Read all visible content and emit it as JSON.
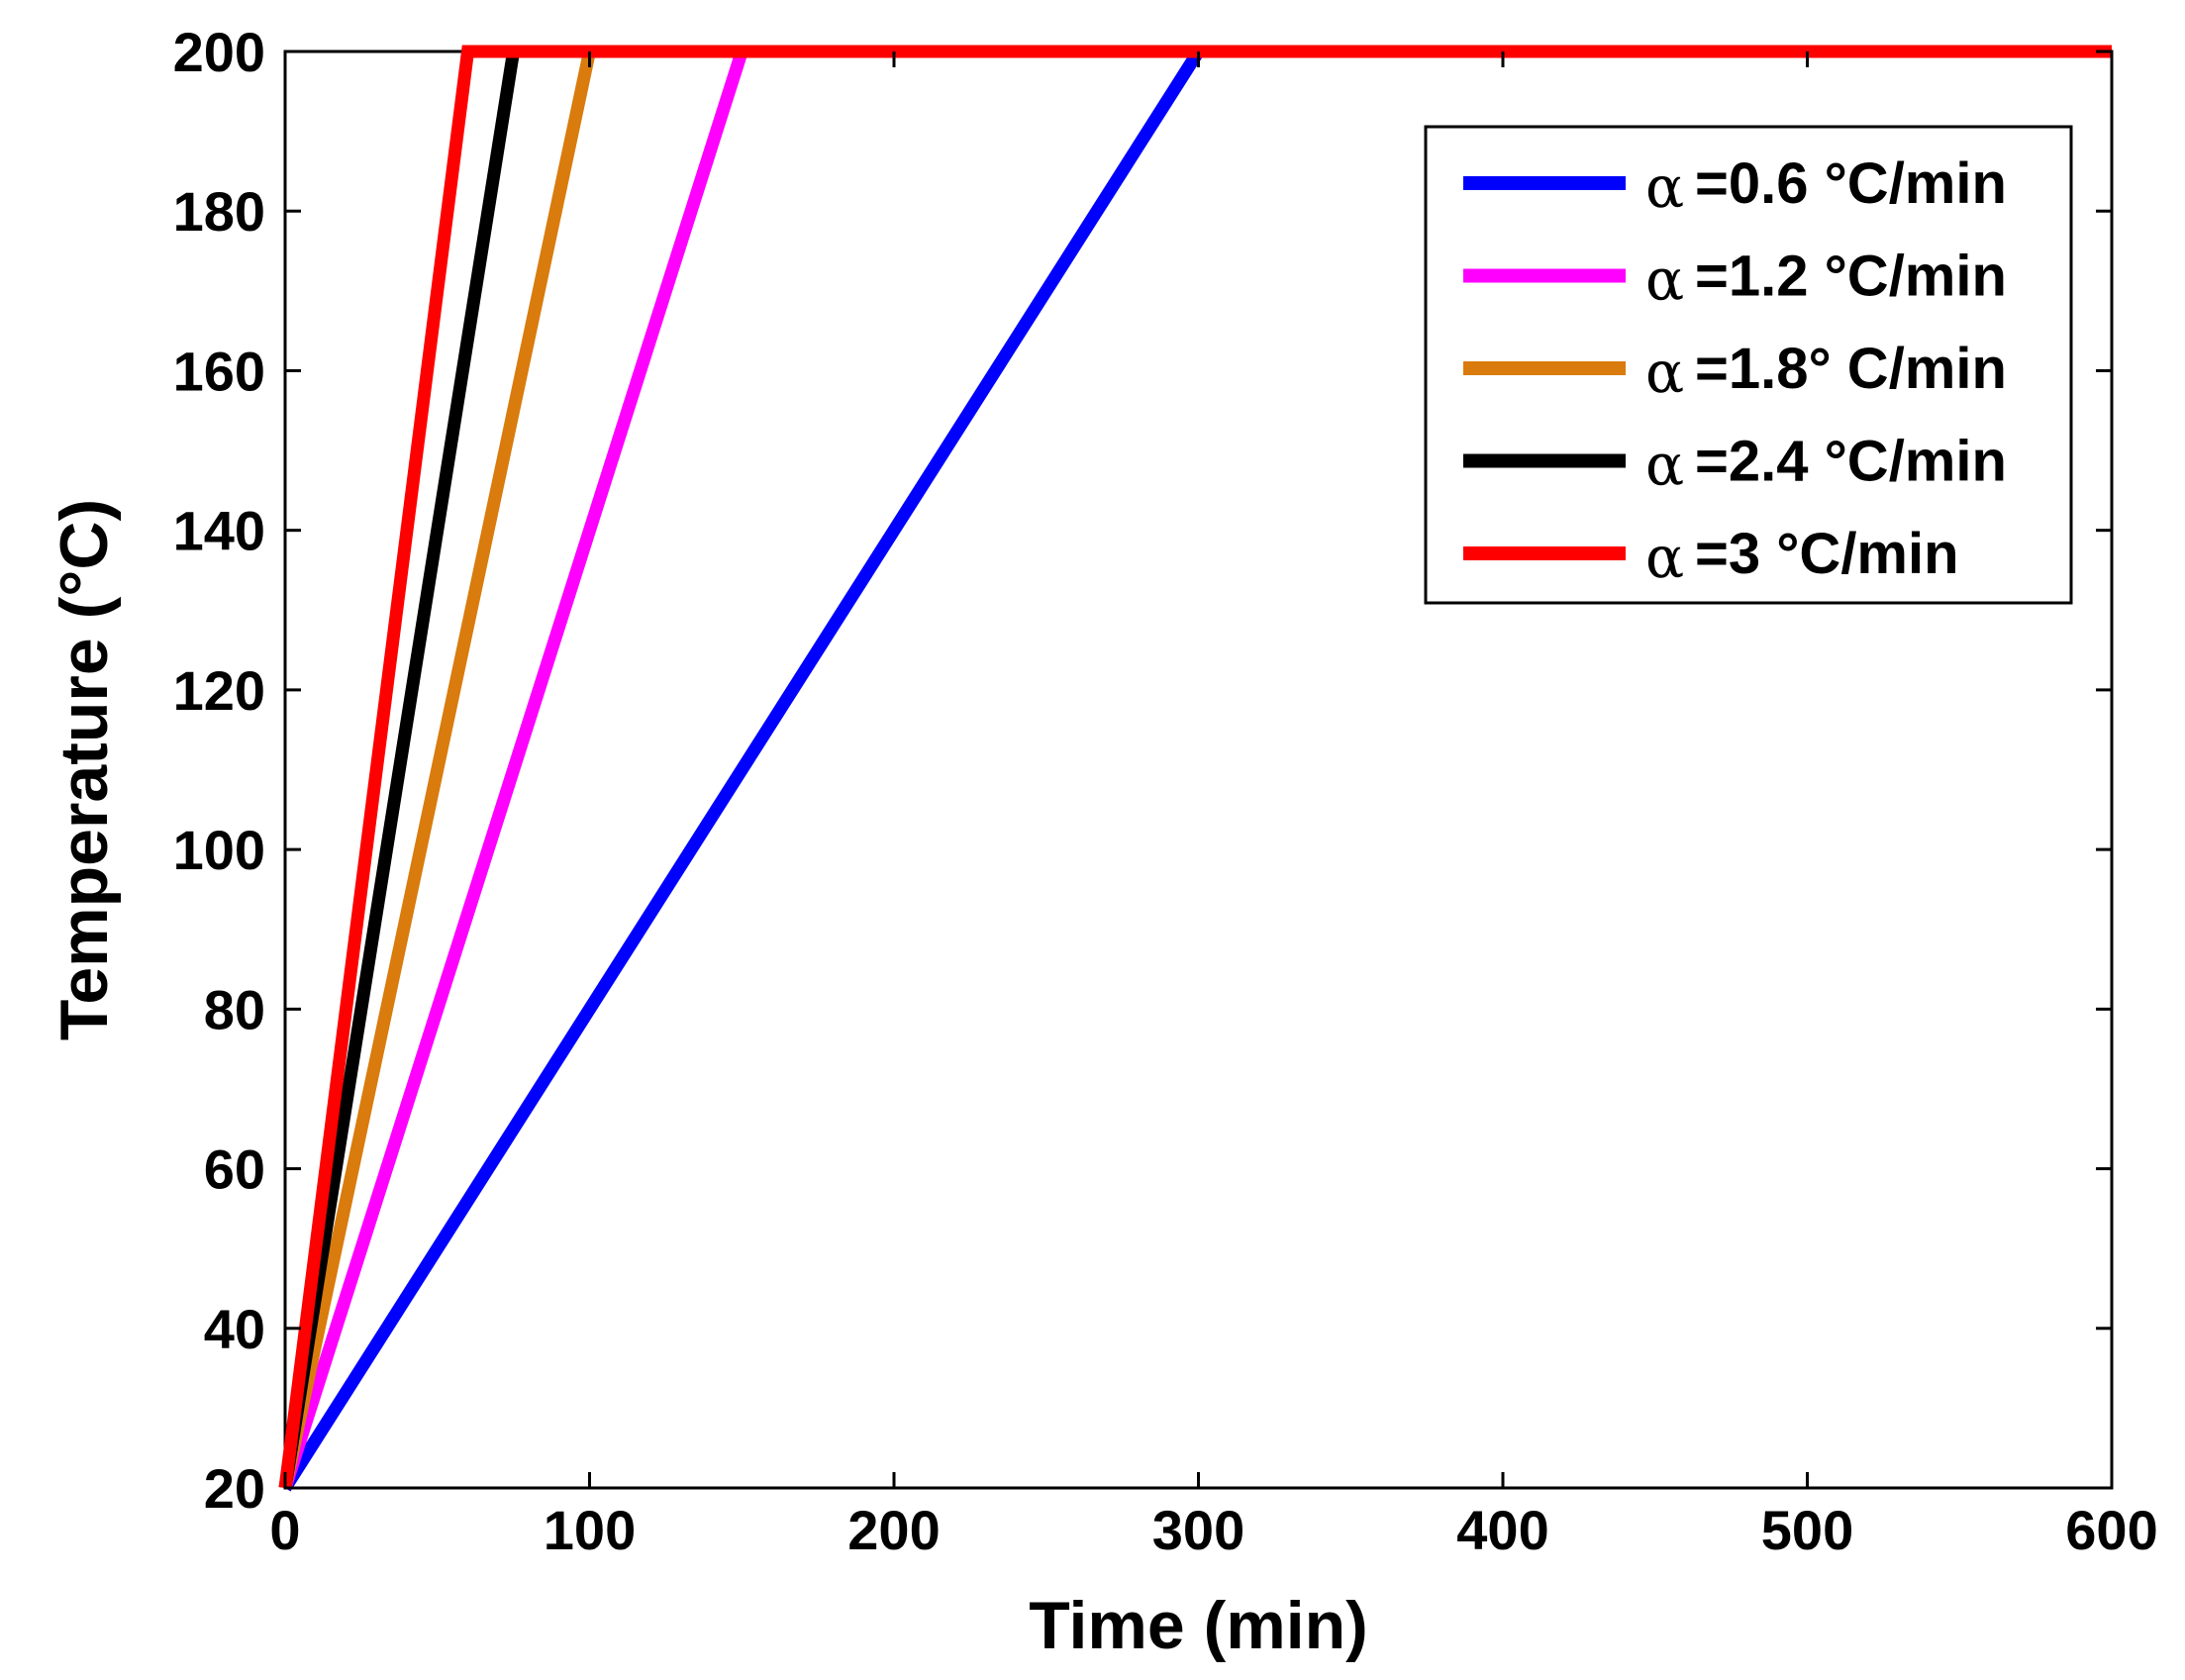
{
  "chart_data": {
    "type": "line",
    "title": "",
    "xlabel": "Time (min)",
    "ylabel": "Temperature (°C)",
    "xlim": [
      0,
      600
    ],
    "ylim": [
      20,
      200
    ],
    "xticks": [
      0,
      100,
      200,
      300,
      400,
      500,
      600
    ],
    "yticks": [
      20,
      40,
      60,
      80,
      100,
      120,
      140,
      160,
      180,
      200
    ],
    "grid": false,
    "legend_position": "top-right",
    "series": [
      {
        "name": "α =0.6 °C/min",
        "legend_symbol": "α",
        "legend_text": "=0.6 °C/min",
        "color": "#0000ff",
        "rate": 0.6,
        "x": [
          0,
          300,
          600
        ],
        "y": [
          20,
          200,
          200
        ]
      },
      {
        "name": "α =1.2 °C/min",
        "legend_symbol": "α",
        "legend_text": "=1.2 °C/min",
        "color": "#ff00ff",
        "rate": 1.2,
        "x": [
          0,
          150,
          600
        ],
        "y": [
          20,
          200,
          200
        ]
      },
      {
        "name": "α =1.8° C/min",
        "legend_symbol": "α",
        "legend_text": "=1.8° C/min",
        "color": "#d97b0d",
        "rate": 1.8,
        "x": [
          0,
          100,
          600
        ],
        "y": [
          20,
          200,
          200
        ]
      },
      {
        "name": "α =2.4 °C/min",
        "legend_symbol": "α",
        "legend_text": "=2.4 °C/min",
        "color": "#000000",
        "rate": 2.4,
        "x": [
          0,
          75,
          600
        ],
        "y": [
          20,
          200,
          200
        ]
      },
      {
        "name": "α =3 °C/min",
        "legend_symbol": "α",
        "legend_text": "=3 °C/min",
        "color": "#ff0000",
        "rate": 3.0,
        "x": [
          0,
          60,
          600
        ],
        "y": [
          20,
          200,
          200
        ]
      }
    ]
  }
}
